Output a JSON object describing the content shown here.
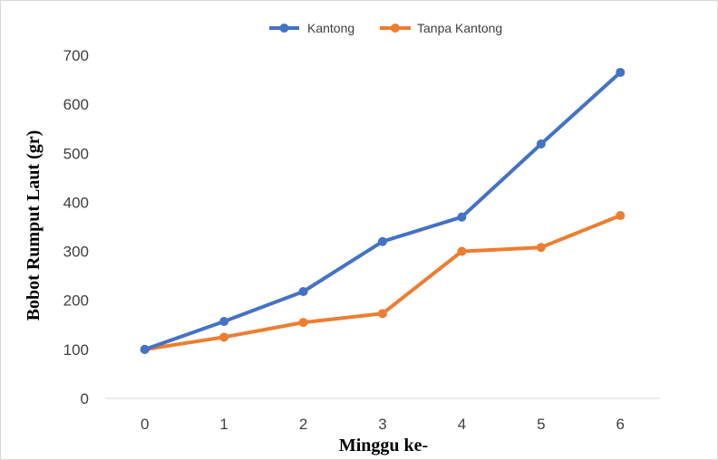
{
  "chart_data": {
    "type": "line",
    "title": "",
    "xlabel": "Minggu ke-",
    "ylabel": "Bobot Rumput Laut (gr)",
    "categories": [
      "0",
      "1",
      "2",
      "3",
      "4",
      "5",
      "6"
    ],
    "ylim": [
      0,
      700
    ],
    "yticks": [
      "0",
      "100",
      "200",
      "300",
      "400",
      "500",
      "600",
      "700"
    ],
    "grid": false,
    "legend_position": "top",
    "series": [
      {
        "name": "Kantong",
        "color": "#4472C4",
        "values": [
          100,
          157,
          218,
          320,
          370,
          519,
          665
        ]
      },
      {
        "name": "Tanpa Kantong",
        "color": "#ED7D31",
        "values": [
          100,
          125,
          155,
          173,
          300,
          308,
          373
        ]
      }
    ]
  }
}
